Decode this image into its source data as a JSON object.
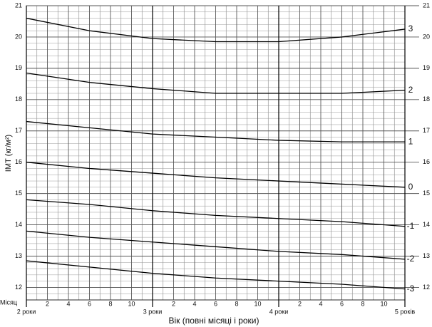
{
  "chart_data": {
    "type": "line",
    "x_label": "Вік (повні місяці і роки)",
    "y_label": "ІМТ (кг/м²)",
    "month_row_label": "Місяц",
    "xlim": [
      24,
      60
    ],
    "ylim": [
      11.6,
      21
    ],
    "x": [
      24,
      30,
      36,
      42,
      48,
      54,
      60
    ],
    "xticks": [
      {
        "value": 24,
        "label": "2 роки"
      },
      {
        "value": 26,
        "label": "2"
      },
      {
        "value": 28,
        "label": "4"
      },
      {
        "value": 30,
        "label": "6"
      },
      {
        "value": 32,
        "label": "8"
      },
      {
        "value": 34,
        "label": "10"
      },
      {
        "value": 36,
        "label": "3 роки"
      },
      {
        "value": 38,
        "label": "2"
      },
      {
        "value": 40,
        "label": "4"
      },
      {
        "value": 42,
        "label": "6"
      },
      {
        "value": 44,
        "label": "8"
      },
      {
        "value": 46,
        "label": "10"
      },
      {
        "value": 48,
        "label": "4 роки"
      },
      {
        "value": 50,
        "label": "2"
      },
      {
        "value": 52,
        "label": "4"
      },
      {
        "value": 54,
        "label": "6"
      },
      {
        "value": 56,
        "label": "8"
      },
      {
        "value": 58,
        "label": "10"
      },
      {
        "value": 60,
        "label": "5 років"
      }
    ],
    "yticks": [
      12,
      13,
      14,
      15,
      16,
      17,
      18,
      19,
      20,
      21
    ],
    "grid": true,
    "series": [
      {
        "name": "3",
        "color": "#000000",
        "values": [
          20.6,
          20.2,
          19.95,
          19.85,
          19.85,
          20.0,
          20.25
        ]
      },
      {
        "name": "2",
        "color": "#000000",
        "values": [
          18.85,
          18.55,
          18.35,
          18.2,
          18.2,
          18.2,
          18.3
        ]
      },
      {
        "name": "1",
        "color": "#000000",
        "values": [
          17.3,
          17.1,
          16.9,
          16.8,
          16.7,
          16.65,
          16.65
        ]
      },
      {
        "name": "0",
        "color": "#000000",
        "values": [
          16.0,
          15.8,
          15.65,
          15.5,
          15.4,
          15.3,
          15.2
        ]
      },
      {
        "name": "-1",
        "color": "#000000",
        "values": [
          14.8,
          14.65,
          14.45,
          14.3,
          14.2,
          14.1,
          13.95
        ]
      },
      {
        "name": "-2",
        "color": "#000000",
        "values": [
          13.8,
          13.6,
          13.45,
          13.3,
          13.15,
          13.05,
          12.9
        ]
      },
      {
        "name": "-3",
        "color": "#000000",
        "values": [
          12.85,
          12.65,
          12.45,
          12.3,
          12.2,
          12.1,
          11.95
        ]
      }
    ]
  }
}
